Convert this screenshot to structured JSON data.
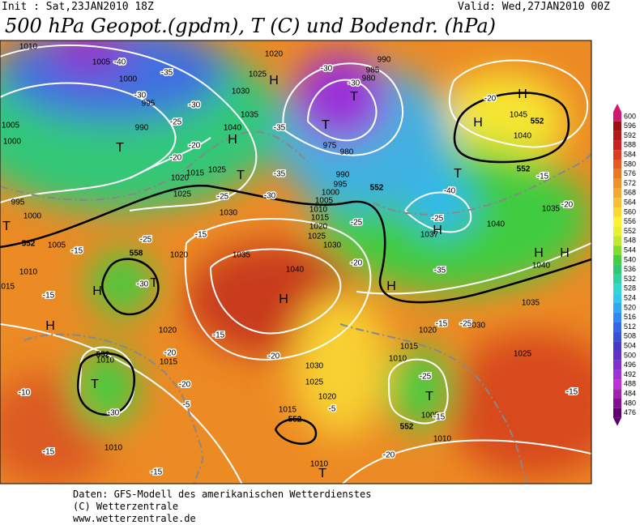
{
  "header": {
    "init": "Init : Sat,23JAN2010 18Z",
    "valid": "Valid: Wed,27JAN2010 00Z",
    "title": "500 hPa Geopot.(gpdm), T (C) und Bodendr. (hPa)"
  },
  "colorbar": {
    "values": [
      600,
      596,
      592,
      588,
      584,
      580,
      576,
      572,
      568,
      564,
      560,
      556,
      552,
      548,
      544,
      540,
      536,
      532,
      528,
      524,
      520,
      516,
      512,
      508,
      504,
      500,
      496,
      492,
      488,
      484,
      480,
      476
    ],
    "colors": [
      "#d01870",
      "#9c1010",
      "#b41818",
      "#cc2020",
      "#dc3c20",
      "#e45a20",
      "#ec7820",
      "#f09028",
      "#f4a830",
      "#f8c030",
      "#fcd830",
      "#fff030",
      "#e8f030",
      "#c0e830",
      "#80dc30",
      "#40d040",
      "#30c870",
      "#30d0a0",
      "#30d8d0",
      "#30c8f0",
      "#30a8f0",
      "#3088f0",
      "#3068e8",
      "#3850d8",
      "#4838c8",
      "#6030c8",
      "#8030d0",
      "#a030d8",
      "#c030d8",
      "#a020b0",
      "#801090",
      "#600070"
    ]
  },
  "pressure_centers": [
    "H",
    "H",
    "H",
    "H",
    "H",
    "H",
    "H",
    "H",
    "H",
    "H",
    "H",
    "T",
    "T",
    "T",
    "T",
    "T",
    "T",
    "T",
    "T",
    "T",
    "T"
  ],
  "isobar_labels": [
    "1010",
    "1005",
    "1000",
    "995",
    "990",
    "1020",
    "1025",
    "1030",
    "1035",
    "1040",
    "1025",
    "1015",
    "1020",
    "1025",
    "1030",
    "1035",
    "1040",
    "1020",
    "1020",
    "1015",
    "1010",
    "1010",
    "990",
    "985",
    "980",
    "975",
    "980",
    "990",
    "995",
    "1000",
    "1005",
    "1010",
    "1015",
    "1020",
    "1025",
    "1030",
    "1037",
    "1040",
    "1035",
    "1045",
    "1040",
    "1040",
    "1035",
    "1030",
    "1025",
    "1020",
    "1015",
    "1010",
    "1005",
    "1010",
    "1010",
    "1015",
    "1020",
    "1025",
    "1030",
    "1000",
    "995",
    "1005",
    "1010",
    "1000",
    "1005",
    "1015"
  ],
  "temperature_labels": [
    "-40",
    "-35",
    "-30",
    "-25",
    "-20",
    "-30",
    "-35",
    "-35",
    "-30",
    "-25",
    "-20",
    "-30",
    "-30",
    "-40",
    "-35",
    "-25",
    "-20",
    "-15",
    "-25",
    "-15",
    "-30",
    "-15",
    "-20",
    "-20",
    "-15",
    "-10",
    "-15",
    "-5",
    "-20",
    "-15",
    "-25",
    "-20",
    "-30",
    "-25",
    "-15",
    "-20",
    "-25",
    "-15",
    "-5",
    "-15",
    "-20",
    "-15"
  ],
  "height_labels": [
    "552",
    "558",
    "552",
    "552",
    "552",
    "552",
    "552",
    "552"
  ],
  "footer": [
    "Daten: GFS-Modell des amerikanischen Wetterdienstes",
    "(C) Wetterzentrale",
    "www.wetterzentrale.de"
  ]
}
